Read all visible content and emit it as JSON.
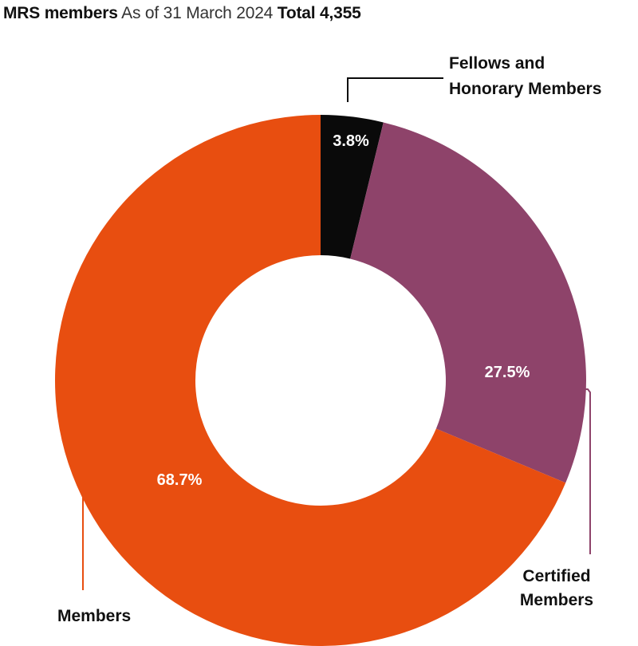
{
  "header": {
    "title": "MRS members",
    "subtitle": "As of 31 March 2024",
    "total": "Total 4,355"
  },
  "chart_data": {
    "type": "pie",
    "donut": true,
    "title": "MRS members",
    "subtitle": "As of 31 March 2024",
    "total": "Total 4,355",
    "categories": [
      "Fellows and Honorary Members",
      "Certified Members",
      "Members"
    ],
    "category_lines": [
      [
        "Fellows and",
        "Honorary Members"
      ],
      [
        "Certified",
        "Members"
      ],
      [
        "Members"
      ]
    ],
    "values": [
      3.8,
      27.5,
      68.7
    ],
    "labels": [
      "3.8%",
      "27.5%",
      "68.7%"
    ],
    "colors": [
      "#0a0a0a",
      "#8e436a",
      "#e84e10"
    ],
    "leader_colors": [
      "#0a0a0a",
      "#8e436a",
      "#e84e10"
    ],
    "legend": "direct-labels"
  }
}
